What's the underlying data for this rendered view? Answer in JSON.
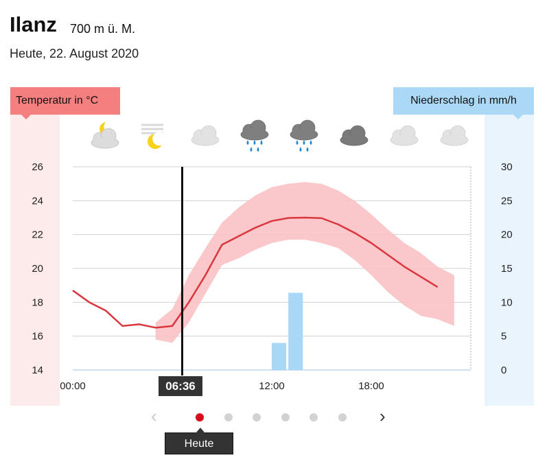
{
  "header": {
    "location": "Ilanz",
    "altitude": "700 m ü. M.",
    "date": "Heute, 22. August 2020"
  },
  "legend": {
    "temperature": "Temperatur in °C",
    "precipitation": "Niederschlag in mm/h"
  },
  "icons": [
    {
      "name": "partly-cloudy-night-icon"
    },
    {
      "name": "fog-moon-icon"
    },
    {
      "name": "light-cloud-icon"
    },
    {
      "name": "rain-cloud-icon"
    },
    {
      "name": "rain-cloud-icon"
    },
    {
      "name": "dark-cloud-icon"
    },
    {
      "name": "light-cloud-icon"
    },
    {
      "name": "light-cloud-icon"
    }
  ],
  "colors": {
    "temp_line": "#d9363e",
    "temp_band": "#f9c2c4",
    "precip_bar": "#a8d8f5",
    "now_line": "#111111",
    "active_dot": "#d60b1c"
  },
  "now_marker": {
    "time": "06:36",
    "hour": 6.6
  },
  "navigation": {
    "prev": "‹",
    "next": "›",
    "active_index": 0,
    "dot_count": 6,
    "active_label": "Heute"
  },
  "chart_data": {
    "type": "line",
    "x_ticks": [
      "00:00",
      "12:00",
      "18:00"
    ],
    "x_tick_hours": [
      0,
      12,
      18
    ],
    "xlim": [
      0,
      24
    ],
    "temperature": {
      "unit": "°C",
      "ylim": [
        14,
        26
      ],
      "y_ticks": [
        14,
        16,
        18,
        20,
        22,
        24,
        26
      ],
      "hours": [
        0,
        1,
        2,
        3,
        4,
        5,
        6,
        7,
        8,
        9,
        10,
        11,
        12,
        13,
        14,
        15,
        16,
        17,
        18,
        19,
        20,
        21,
        22,
        23
      ],
      "values": [
        18.7,
        18.0,
        17.5,
        16.6,
        16.7,
        16.5,
        16.6,
        18.0,
        19.6,
        21.4,
        21.9,
        22.4,
        22.8,
        22.98,
        23.0,
        22.97,
        22.6,
        22.1,
        21.5,
        20.8,
        20.1,
        19.5,
        18.9,
        null
      ],
      "band_hours": [
        5,
        6,
        7,
        8,
        9,
        10,
        11,
        12,
        13,
        14,
        15,
        16,
        17,
        18,
        19,
        20,
        21,
        22,
        23
      ],
      "band_low": [
        15.8,
        15.6,
        16.8,
        18.5,
        20.2,
        20.6,
        21.1,
        21.5,
        21.7,
        21.7,
        21.5,
        21.2,
        20.5,
        19.6,
        18.6,
        17.8,
        17.2,
        17.0,
        16.6
      ],
      "band_high": [
        16.8,
        17.6,
        19.6,
        21.2,
        22.7,
        23.6,
        24.3,
        24.8,
        25.0,
        25.1,
        25.0,
        24.6,
        24.0,
        23.2,
        22.3,
        21.5,
        20.9,
        20.1,
        19.6
      ]
    },
    "precipitation": {
      "unit": "mm/h",
      "ylim": [
        0,
        30
      ],
      "y_ticks": [
        0,
        5,
        10,
        15,
        20,
        25,
        30
      ],
      "bars": [
        {
          "hour": 12,
          "value": 4
        },
        {
          "hour": 13,
          "value": 11.4
        }
      ]
    }
  }
}
